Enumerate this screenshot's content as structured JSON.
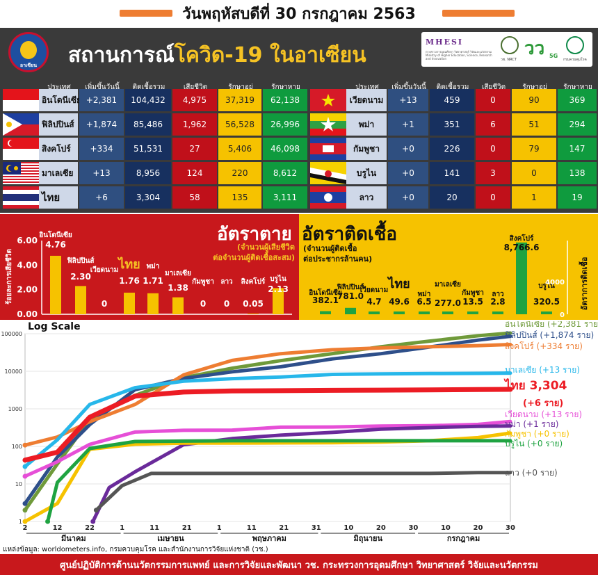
{
  "date_line": "วันพฤหัสบดีที่ 30 กรกฎาคม 2563",
  "title_prefix": "สถานการณ์",
  "title_highlight": "โควิด-19 ในอาเซียน",
  "asean_logo_text": "อาเซียน",
  "partners": {
    "mhesi": "MHESI",
    "mhesi_sub": "กระทรวงการอุดมศึกษา วิทยาศาสตร์ วิจัยและนวัตกรรม Ministry of Higher Education, Science, Research and Innovation",
    "nrct": "วช. NRCT",
    "vs5g": "วว",
    "g5": "5G",
    "ddc": "กรมควบคุมโรค"
  },
  "table": {
    "headers": {
      "country": "ประเทศ",
      "new": "เพิ่มขึ้นวันนี้",
      "total": "ติดเชื้อรวม",
      "deaths": "เสียชีวิต",
      "treating": "รักษาอยู่",
      "recovered": "รักษาหาย"
    },
    "left": [
      {
        "country": "อินโดนีเซีย",
        "new": "+2,381",
        "total": "104,432",
        "deaths": "4,975",
        "treating": "37,319",
        "recovered": "62,138",
        "flag": "indonesia"
      },
      {
        "country": "ฟิลิปปินส์",
        "new": "+1,874",
        "total": "85,486",
        "deaths": "1,962",
        "treating": "56,528",
        "recovered": "26,996",
        "flag": "philippines"
      },
      {
        "country": "สิงคโปร์",
        "new": "+334",
        "total": "51,531",
        "deaths": "27",
        "treating": "5,406",
        "recovered": "46,098",
        "flag": "singapore"
      },
      {
        "country": "มาเลเซีย",
        "new": "+13",
        "total": "8,956",
        "deaths": "124",
        "treating": "220",
        "recovered": "8,612",
        "flag": "malaysia"
      },
      {
        "country": "ไทย",
        "new": "+6",
        "total": "3,304",
        "deaths": "58",
        "treating": "135",
        "recovered": "3,111",
        "flag": "thailand"
      }
    ],
    "right": [
      {
        "country": "เวียดนาม",
        "new": "+13",
        "total": "459",
        "deaths": "0",
        "treating": "90",
        "recovered": "369",
        "flag": "vietnam"
      },
      {
        "country": "พม่า",
        "new": "+1",
        "total": "351",
        "deaths": "6",
        "treating": "51",
        "recovered": "294",
        "flag": "myanmar"
      },
      {
        "country": "กัมพูชา",
        "new": "+0",
        "total": "226",
        "deaths": "0",
        "treating": "79",
        "recovered": "147",
        "flag": "cambodia"
      },
      {
        "country": "บรูไน",
        "new": "+0",
        "total": "141",
        "deaths": "3",
        "treating": "0",
        "recovered": "138",
        "flag": "brunei"
      },
      {
        "country": "ลาว",
        "new": "+0",
        "total": "20",
        "deaths": "0",
        "treating": "1",
        "recovered": "19",
        "flag": "laos"
      }
    ]
  },
  "colors": {
    "death_bg": "#c8181c",
    "infect_bg": "#f6c200",
    "bar_yellow": "#f6c200",
    "bar_green": "#1fa341",
    "header_gray": "#3a3a3a"
  },
  "chart_data": [
    {
      "type": "bar",
      "title": "อัตราตาย",
      "subtitle": "(จำนวนผู้เสียชีวิต ต่อจำนวนผู้ติดเชื้อสะสม)",
      "ylabel": "ร้อยละการเสียชีวิต",
      "ylim": [
        0,
        6
      ],
      "yticks": [
        "0.00",
        "2.00",
        "4.00",
        "6.00"
      ],
      "categories": [
        "อินโดนีเซีย",
        "ฟิลิปปินส์",
        "เวียดนาม",
        "ไทย",
        "พม่า",
        "มาเลเซีย",
        "กัมพูชา",
        "ลาว",
        "สิงคโปร์",
        "บรูไน"
      ],
      "value_labels": [
        "4.76",
        "2.30",
        "0",
        "1.76",
        "1.71",
        "1.38",
        "0",
        "0",
        "0.05",
        "2.13"
      ],
      "values": [
        4.76,
        2.3,
        0,
        1.76,
        1.71,
        1.38,
        0,
        0,
        0.05,
        2.13
      ]
    },
    {
      "type": "bar",
      "title": "อัตราติดเชื้อ",
      "subtitle": "(จำนวนผู้ติดเชื้อ ต่อประชากรล้านคน)",
      "ylabel": "อัตราการติดเชื้อ",
      "yticks": [
        "0",
        "4000"
      ],
      "ylim": [
        0,
        9000
      ],
      "categories": [
        "อินโดนีเซีย",
        "ฟิลิปปินส์",
        "เวียดนาม",
        "ไทย",
        "พม่า",
        "มาเลเซีย",
        "กัมพูชา",
        "ลาว",
        "สิงคโปร์",
        "บรูไน"
      ],
      "value_labels": [
        "382.1",
        "781.0",
        "4.7",
        "49.6",
        "6.5",
        "277.0",
        "13.5",
        "2.8",
        "8,766.6",
        "320.5"
      ],
      "values": [
        382.1,
        781.0,
        4.7,
        49.6,
        6.5,
        277.0,
        13.5,
        2.8,
        8766.6,
        320.5
      ]
    },
    {
      "type": "line",
      "title": "Log Scale",
      "yscale": "log",
      "yticks": [
        "1",
        "10",
        "100",
        "1000",
        "10000",
        "100000"
      ],
      "xtick_labels": [
        "2",
        "12",
        "22",
        "1",
        "11",
        "21",
        "1",
        "11",
        "21",
        "31",
        "10",
        "20",
        "30",
        "10",
        "20",
        "30"
      ],
      "month_labels": [
        "มีนาคม",
        "เมษายน",
        "พฤษภาคม",
        "มิถุนายน",
        "กรกฎาคม"
      ],
      "x_start": "2020-03-02",
      "x_end": "2020-07-30",
      "series": [
        {
          "name": "อินโดนีเซีย (+2,381 ราย)",
          "color": "#6f9a3a",
          "points": [
            [
              "2020-03-02",
              2
            ],
            [
              "2020-03-12",
              34
            ],
            [
              "2020-03-22",
              514
            ],
            [
              "2020-04-05",
              2273
            ],
            [
              "2020-04-20",
              6760
            ],
            [
              "2020-05-05",
              12071
            ],
            [
              "2020-05-20",
              19189
            ],
            [
              "2020-06-05",
              29521
            ],
            [
              "2020-06-20",
              45029
            ],
            [
              "2020-07-05",
              63749
            ],
            [
              "2020-07-20",
              88214
            ],
            [
              "2020-07-30",
              104432
            ]
          ]
        },
        {
          "name": "ฟิลิปปินส์ (+1,874 ราย)",
          "color": "#2e4f8a",
          "points": [
            [
              "2020-03-02",
              3
            ],
            [
              "2020-03-12",
              52
            ],
            [
              "2020-03-22",
              380
            ],
            [
              "2020-04-05",
              3246
            ],
            [
              "2020-04-20",
              6459
            ],
            [
              "2020-05-05",
              9684
            ],
            [
              "2020-05-20",
              13221
            ],
            [
              "2020-06-05",
              21340
            ],
            [
              "2020-06-20",
              29400
            ],
            [
              "2020-07-05",
              44254
            ],
            [
              "2020-07-20",
              67456
            ],
            [
              "2020-07-30",
              85486
            ]
          ]
        },
        {
          "name": "สิงคโปร์ (+334 ราย)",
          "color": "#ee7d32",
          "points": [
            [
              "2020-03-02",
              108
            ],
            [
              "2020-03-12",
              178
            ],
            [
              "2020-03-22",
              455
            ],
            [
              "2020-04-05",
              1309
            ],
            [
              "2020-04-20",
              8014
            ],
            [
              "2020-05-05",
              19410
            ],
            [
              "2020-05-20",
              29364
            ],
            [
              "2020-06-05",
              37527
            ],
            [
              "2020-06-20",
              41833
            ],
            [
              "2020-07-05",
              44800
            ],
            [
              "2020-07-20",
              48297
            ],
            [
              "2020-07-30",
              51531
            ]
          ]
        },
        {
          "name": "มาเลเซีย (+13 ราย)",
          "color": "#27b7ea",
          "points": [
            [
              "2020-03-02",
              29
            ],
            [
              "2020-03-12",
              149
            ],
            [
              "2020-03-22",
              1306
            ],
            [
              "2020-04-05",
              3662
            ],
            [
              "2020-04-20",
              5425
            ],
            [
              "2020-05-05",
              6353
            ],
            [
              "2020-05-20",
              7059
            ],
            [
              "2020-06-05",
              8266
            ],
            [
              "2020-06-20",
              8556
            ],
            [
              "2020-07-05",
              8674
            ],
            [
              "2020-07-20",
              8800
            ],
            [
              "2020-07-30",
              8956
            ]
          ]
        },
        {
          "name": "ไทย 3,304",
          "color": "#ec1c24",
          "points": [
            [
              "2020-03-02",
              43
            ],
            [
              "2020-03-12",
              70
            ],
            [
              "2020-03-22",
              599
            ],
            [
              "2020-04-05",
              2169
            ],
            [
              "2020-04-20",
              2792
            ],
            [
              "2020-05-05",
              2988
            ],
            [
              "2020-05-20",
              3037
            ],
            [
              "2020-06-05",
              3104
            ],
            [
              "2020-06-20",
              3149
            ],
            [
              "2020-07-05",
              3195
            ],
            [
              "2020-07-20",
              3255
            ],
            [
              "2020-07-30",
              3304
            ]
          ]
        },
        {
          "name": "เวียดนาม (+13 ราย)",
          "color": "#e64fd7",
          "points": [
            [
              "2020-03-02",
              16
            ],
            [
              "2020-03-12",
              39
            ],
            [
              "2020-03-22",
              113
            ],
            [
              "2020-04-05",
              241
            ],
            [
              "2020-04-20",
              268
            ],
            [
              "2020-05-05",
              271
            ],
            [
              "2020-05-20",
              324
            ],
            [
              "2020-06-05",
              328
            ],
            [
              "2020-06-20",
              349
            ],
            [
              "2020-07-05",
              355
            ],
            [
              "2020-07-20",
              384
            ],
            [
              "2020-07-30",
              459
            ]
          ]
        },
        {
          "name": "พม่า (+1 ราย)",
          "color": "#6a2a9a",
          "points": [
            [
              "2020-03-23",
              1
            ],
            [
              "2020-03-28",
              8
            ],
            [
              "2020-04-05",
              21
            ],
            [
              "2020-04-20",
              111
            ],
            [
              "2020-05-05",
              161
            ],
            [
              "2020-05-20",
              199
            ],
            [
              "2020-06-05",
              236
            ],
            [
              "2020-06-20",
              287
            ],
            [
              "2020-07-05",
              316
            ],
            [
              "2020-07-20",
              341
            ],
            [
              "2020-07-30",
              351
            ]
          ]
        },
        {
          "name": "กัมพูชา (+0 ราย)",
          "color": "#f6c200",
          "points": [
            [
              "2020-03-02",
              1
            ],
            [
              "2020-03-12",
              3
            ],
            [
              "2020-03-22",
              84
            ],
            [
              "2020-04-05",
              114
            ],
            [
              "2020-04-20",
              122
            ],
            [
              "2020-05-05",
              122
            ],
            [
              "2020-05-20",
              124
            ],
            [
              "2020-06-05",
              125
            ],
            [
              "2020-06-20",
              130
            ],
            [
              "2020-07-05",
              141
            ],
            [
              "2020-07-20",
              171
            ],
            [
              "2020-07-30",
              226
            ]
          ]
        },
        {
          "name": "บรูไน (+0 ราย)",
          "color": "#1fa341",
          "points": [
            [
              "2020-03-09",
              1
            ],
            [
              "2020-03-12",
              11
            ],
            [
              "2020-03-22",
              88
            ],
            [
              "2020-04-05",
              135
            ],
            [
              "2020-04-20",
              138
            ],
            [
              "2020-05-05",
              141
            ],
            [
              "2020-05-20",
              141
            ],
            [
              "2020-06-05",
              141
            ],
            [
              "2020-06-20",
              141
            ],
            [
              "2020-07-05",
              141
            ],
            [
              "2020-07-20",
              141
            ],
            [
              "2020-07-30",
              141
            ]
          ]
        },
        {
          "name": "ลาว (+0 ราย)",
          "color": "#555555",
          "points": [
            [
              "2020-03-24",
              2
            ],
            [
              "2020-04-01",
              9
            ],
            [
              "2020-04-10",
              19
            ],
            [
              "2020-04-20",
              19
            ],
            [
              "2020-05-05",
              19
            ],
            [
              "2020-05-20",
              19
            ],
            [
              "2020-06-05",
              19
            ],
            [
              "2020-06-20",
              19
            ],
            [
              "2020-07-05",
              19
            ],
            [
              "2020-07-20",
              20
            ],
            [
              "2020-07-30",
              20
            ]
          ]
        }
      ],
      "thai_delta": "(+6 ราย)"
    }
  ],
  "source": "แหล่งข้อมูล: worldometers.info, กรมควบคุมโรค และสำนักงานการวิจัยแห่งชาติ (วช.)",
  "footer": "ศูนย์ปฏิบัติการด้านนวัตกรรมการแพทย์ และการวิจัยและพัฒนา วช. กระทรวงการอุดมศึกษา วิทยาศาสตร์ วิจัยและนวัตกรรม"
}
